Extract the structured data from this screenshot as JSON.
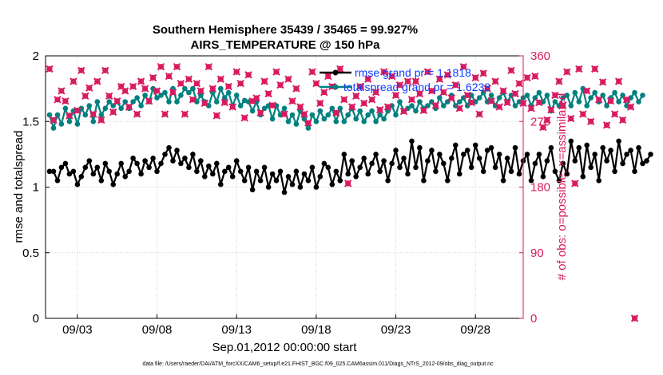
{
  "chart_data": {
    "type": "line",
    "title_line1": "Southern Hemisphere 35439 / 35465 = 99.927%",
    "title_line2": "AIRS_TEMPERATURE @ 150 hPa",
    "ylabel_left": "rmse and totalspread",
    "ylabel_right": "# of obs: o=possible; ×=assimilated",
    "xlabel": "Sep.01,2012 00:00:00 start",
    "footer": "data file: /Users/raeder/DAI/ATM_forcXX/CAM6_setup/f.e21.FHIST_BGC.f09_025.CAM6assim.011/Diags_NTrS_2012-09/obs_diag_output.nc",
    "x_ticks": [
      "09/03",
      "09/08",
      "09/13",
      "09/18",
      "09/23",
      "09/28"
    ],
    "x_tick_days": [
      3,
      8,
      13,
      18,
      23,
      28
    ],
    "xlim": [
      1.0,
      31.0
    ],
    "y_ticks_left": [
      "0",
      "0.5",
      "1",
      "1.5",
      "2"
    ],
    "ylim_left": [
      0,
      2
    ],
    "y_ticks_right": [
      "0",
      "90",
      "180",
      "270",
      "360"
    ],
    "ylim_right": [
      0,
      360
    ],
    "grid": true,
    "legend_position": "top-right",
    "colors": {
      "rmse": "#000000",
      "spread": "#008080",
      "obs": "#d81b60",
      "right_axis": "#d81b60",
      "legend_text": "#0a3cff"
    },
    "x_start": 1.25,
    "x_step": 0.25,
    "series": [
      {
        "name": "rmse grand pr = 1.1818",
        "values": [
          1.12,
          1.12,
          1.05,
          1.15,
          1.18,
          1.1,
          1.12,
          1.02,
          1.08,
          1.15,
          1.2,
          1.1,
          1.15,
          1.05,
          1.18,
          1.12,
          1.02,
          1.1,
          1.18,
          1.08,
          1.12,
          1.22,
          1.18,
          1.1,
          1.2,
          1.15,
          1.22,
          1.12,
          1.18,
          1.25,
          1.3,
          1.2,
          1.28,
          1.18,
          1.22,
          1.15,
          1.25,
          1.12,
          1.2,
          1.08,
          1.16,
          1.1,
          1.18,
          1.02,
          1.12,
          1.15,
          1.08,
          1.2,
          1.12,
          1.05,
          1.15,
          0.98,
          1.12,
          1.05,
          1.15,
          1.0,
          1.1,
          1.05,
          1.12,
          0.96,
          1.08,
          1.02,
          1.12,
          1.0,
          1.1,
          1.05,
          1.15,
          1.0,
          1.08,
          1.18,
          1.15,
          1.02,
          1.12,
          1.05,
          1.25,
          1.1,
          1.2,
          1.08,
          1.15,
          1.22,
          1.1,
          1.18,
          1.25,
          1.12,
          1.2,
          1.05,
          1.18,
          1.28,
          1.15,
          1.22,
          1.1,
          1.35,
          1.15,
          1.3,
          1.05,
          1.2,
          1.28,
          1.12,
          1.25,
          1.18,
          1.05,
          1.22,
          1.32,
          1.1,
          1.25,
          1.28,
          1.15,
          1.32,
          1.22,
          1.12,
          1.28,
          1.3,
          1.15,
          1.25,
          1.05,
          1.22,
          1.12,
          1.3,
          1.1,
          1.2,
          1.25,
          1.05,
          1.18,
          1.25,
          1.08,
          1.2,
          1.3,
          1.12,
          1.05,
          1.18,
          1.1,
          1.35,
          1.2,
          1.3,
          1.08,
          1.32,
          1.15,
          1.25,
          1.05,
          1.3,
          1.2,
          1.28,
          1.12,
          1.35,
          1.18,
          1.25,
          1.28,
          1.12,
          1.3,
          1.18,
          1.2,
          1.25
        ]
      },
      {
        "name": "totalspread grand pr = 1.6238",
        "values": [
          1.55,
          1.45,
          1.55,
          1.48,
          1.6,
          1.5,
          1.58,
          1.48,
          1.6,
          1.55,
          1.62,
          1.5,
          1.65,
          1.55,
          1.6,
          1.65,
          1.62,
          1.65,
          1.6,
          1.65,
          1.6,
          1.65,
          1.68,
          1.62,
          1.7,
          1.65,
          1.75,
          1.68,
          1.7,
          1.72,
          1.65,
          1.75,
          1.65,
          1.7,
          1.75,
          1.72,
          1.75,
          1.65,
          1.7,
          1.65,
          1.62,
          1.72,
          1.65,
          1.75,
          1.68,
          1.72,
          1.62,
          1.7,
          1.62,
          1.66,
          1.65,
          1.58,
          1.65,
          1.55,
          1.6,
          1.62,
          1.52,
          1.62,
          1.55,
          1.6,
          1.5,
          1.55,
          1.48,
          1.58,
          1.52,
          1.45,
          1.55,
          1.5,
          1.58,
          1.52,
          1.55,
          1.6,
          1.5,
          1.6,
          1.5,
          1.55,
          1.6,
          1.52,
          1.58,
          1.5,
          1.55,
          1.58,
          1.5,
          1.55,
          1.52,
          1.58,
          1.62,
          1.55,
          1.65,
          1.58,
          1.6,
          1.62,
          1.58,
          1.65,
          1.6,
          1.62,
          1.65,
          1.6,
          1.68,
          1.62,
          1.65,
          1.7,
          1.62,
          1.65,
          1.68,
          1.62,
          1.7,
          1.65,
          1.68,
          1.72,
          1.65,
          1.7,
          1.62,
          1.68,
          1.72,
          1.65,
          1.7,
          1.62,
          1.65,
          1.68,
          1.7,
          1.62,
          1.68,
          1.72,
          1.65,
          1.7,
          1.58,
          1.65,
          1.62,
          1.68,
          1.7,
          1.62,
          1.72,
          1.65,
          1.75,
          1.62,
          1.68,
          1.72,
          1.65,
          1.7,
          1.62,
          1.68,
          1.72,
          1.65,
          1.7,
          1.62,
          1.68,
          1.72,
          1.65,
          1.7
        ]
      },
      {
        "name": "# of obs",
        "values": [
          342,
          272,
          300,
          312,
          298,
          278,
          325,
          285,
          340,
          305,
          316,
          280,
          325,
          272,
          340,
          305,
          283,
          298,
          318,
          312,
          290,
          318,
          280,
          325,
          315,
          298,
          330,
          312,
          345,
          280,
          332,
          310,
          345,
          322,
          280,
          328,
          300,
          322,
          312,
          295,
          345,
          315,
          278,
          328,
          296,
          318,
          290,
          338,
          322,
          275,
          334,
          298,
          302,
          282,
          325,
          308,
          292,
          338,
          320,
          280,
          328,
          298,
          315,
          290,
          280,
          268,
          338,
          322,
          295,
          310,
          332,
          318,
          282,
          342,
          300,
          185,
          290,
          305,
          318,
          295,
          328,
          300,
          310,
          286,
          338,
          290,
          332,
          306,
          320,
          284,
          325,
          300,
          325,
          308,
          285,
          338,
          312,
          292,
          328,
          310,
          334,
          302,
          320,
          288,
          345,
          306,
          296,
          330,
          280,
          336,
          315,
          298,
          325,
          290,
          312,
          296,
          340,
          308,
          322,
          295,
          330,
          288,
          332,
          296,
          262,
          272,
          286,
          306,
          325,
          292,
          338,
          274,
          185,
          342,
          280,
          312,
          270,
          342,
          300,
          324,
          265,
          298,
          280,
          325,
          272,
          300,
          290,
          0
        ]
      }
    ]
  }
}
